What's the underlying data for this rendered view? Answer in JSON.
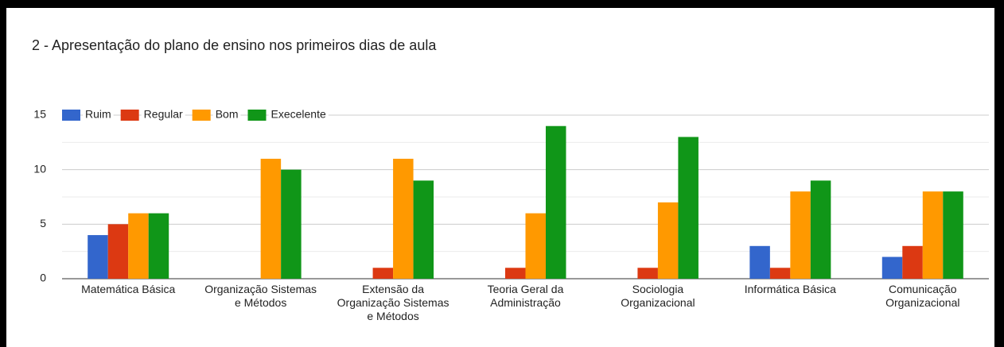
{
  "chart_data": {
    "type": "bar",
    "title": "2 - Apresentação do plano de ensino nos primeiros dias de aula",
    "categories": [
      "Matemática Básica",
      "Organização Sistemas e Métodos",
      "Extensão da Organização Sistemas e Métodos",
      "Teoria Geral da Administração",
      "Sociologia Organizacional",
      "Informática Básica",
      "Comunicação Organizacional"
    ],
    "series": [
      {
        "name": "Ruim",
        "color": "#3366cc",
        "values": [
          4,
          0,
          0,
          0,
          0,
          3,
          2
        ]
      },
      {
        "name": "Regular",
        "color": "#dc3912",
        "values": [
          5,
          0,
          1,
          1,
          1,
          1,
          3
        ]
      },
      {
        "name": "Bom",
        "color": "#ff9900",
        "values": [
          6,
          11,
          11,
          6,
          7,
          8,
          8
        ]
      },
      {
        "name": "Execelente",
        "color": "#109618",
        "values": [
          6,
          10,
          9,
          14,
          13,
          9,
          8
        ]
      }
    ],
    "ylim": [
      0,
      15
    ],
    "yticks": [
      0,
      5,
      10,
      15
    ],
    "grid": true,
    "legend": "top"
  }
}
